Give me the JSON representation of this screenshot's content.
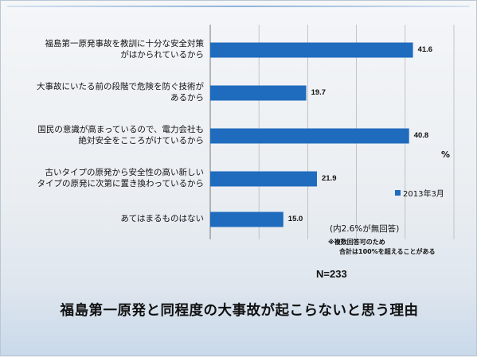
{
  "chart_data": {
    "type": "bar",
    "orientation": "horizontal",
    "title": "福島第一原発と同程度の大事故が起こらないと思う理由",
    "categories": [
      "福島第一原発事故を教訓に十分な安全対策\nがはかられているから",
      "大事故にいたる前の段階で危険を防ぐ技術が\nあるから",
      "国民の意識が高まっているので、電力会社も\n絶対安全をこころがけているから",
      "古いタイプの原発から安全性の高い新しい\nタイプの原発に次第に置き換わっているから",
      "あてはまるものはない"
    ],
    "series": [
      {
        "name": "2013年3月",
        "values": [
          41.6,
          19.7,
          40.8,
          21.9,
          15.0
        ],
        "color": "#1f6bbd"
      }
    ],
    "value_labels": [
      "41.6",
      "19.7",
      "40.8",
      "21.9",
      "15.0"
    ],
    "xlim": [
      0,
      50
    ],
    "grid": true,
    "unit": "%",
    "legend_position": "right"
  },
  "notes": {
    "no_answer": "(内2.6%が無回答)",
    "multi_line1": "※複数回答可のため",
    "multi_line2": "合計は100%を超えることがある",
    "sample": "N=233"
  }
}
